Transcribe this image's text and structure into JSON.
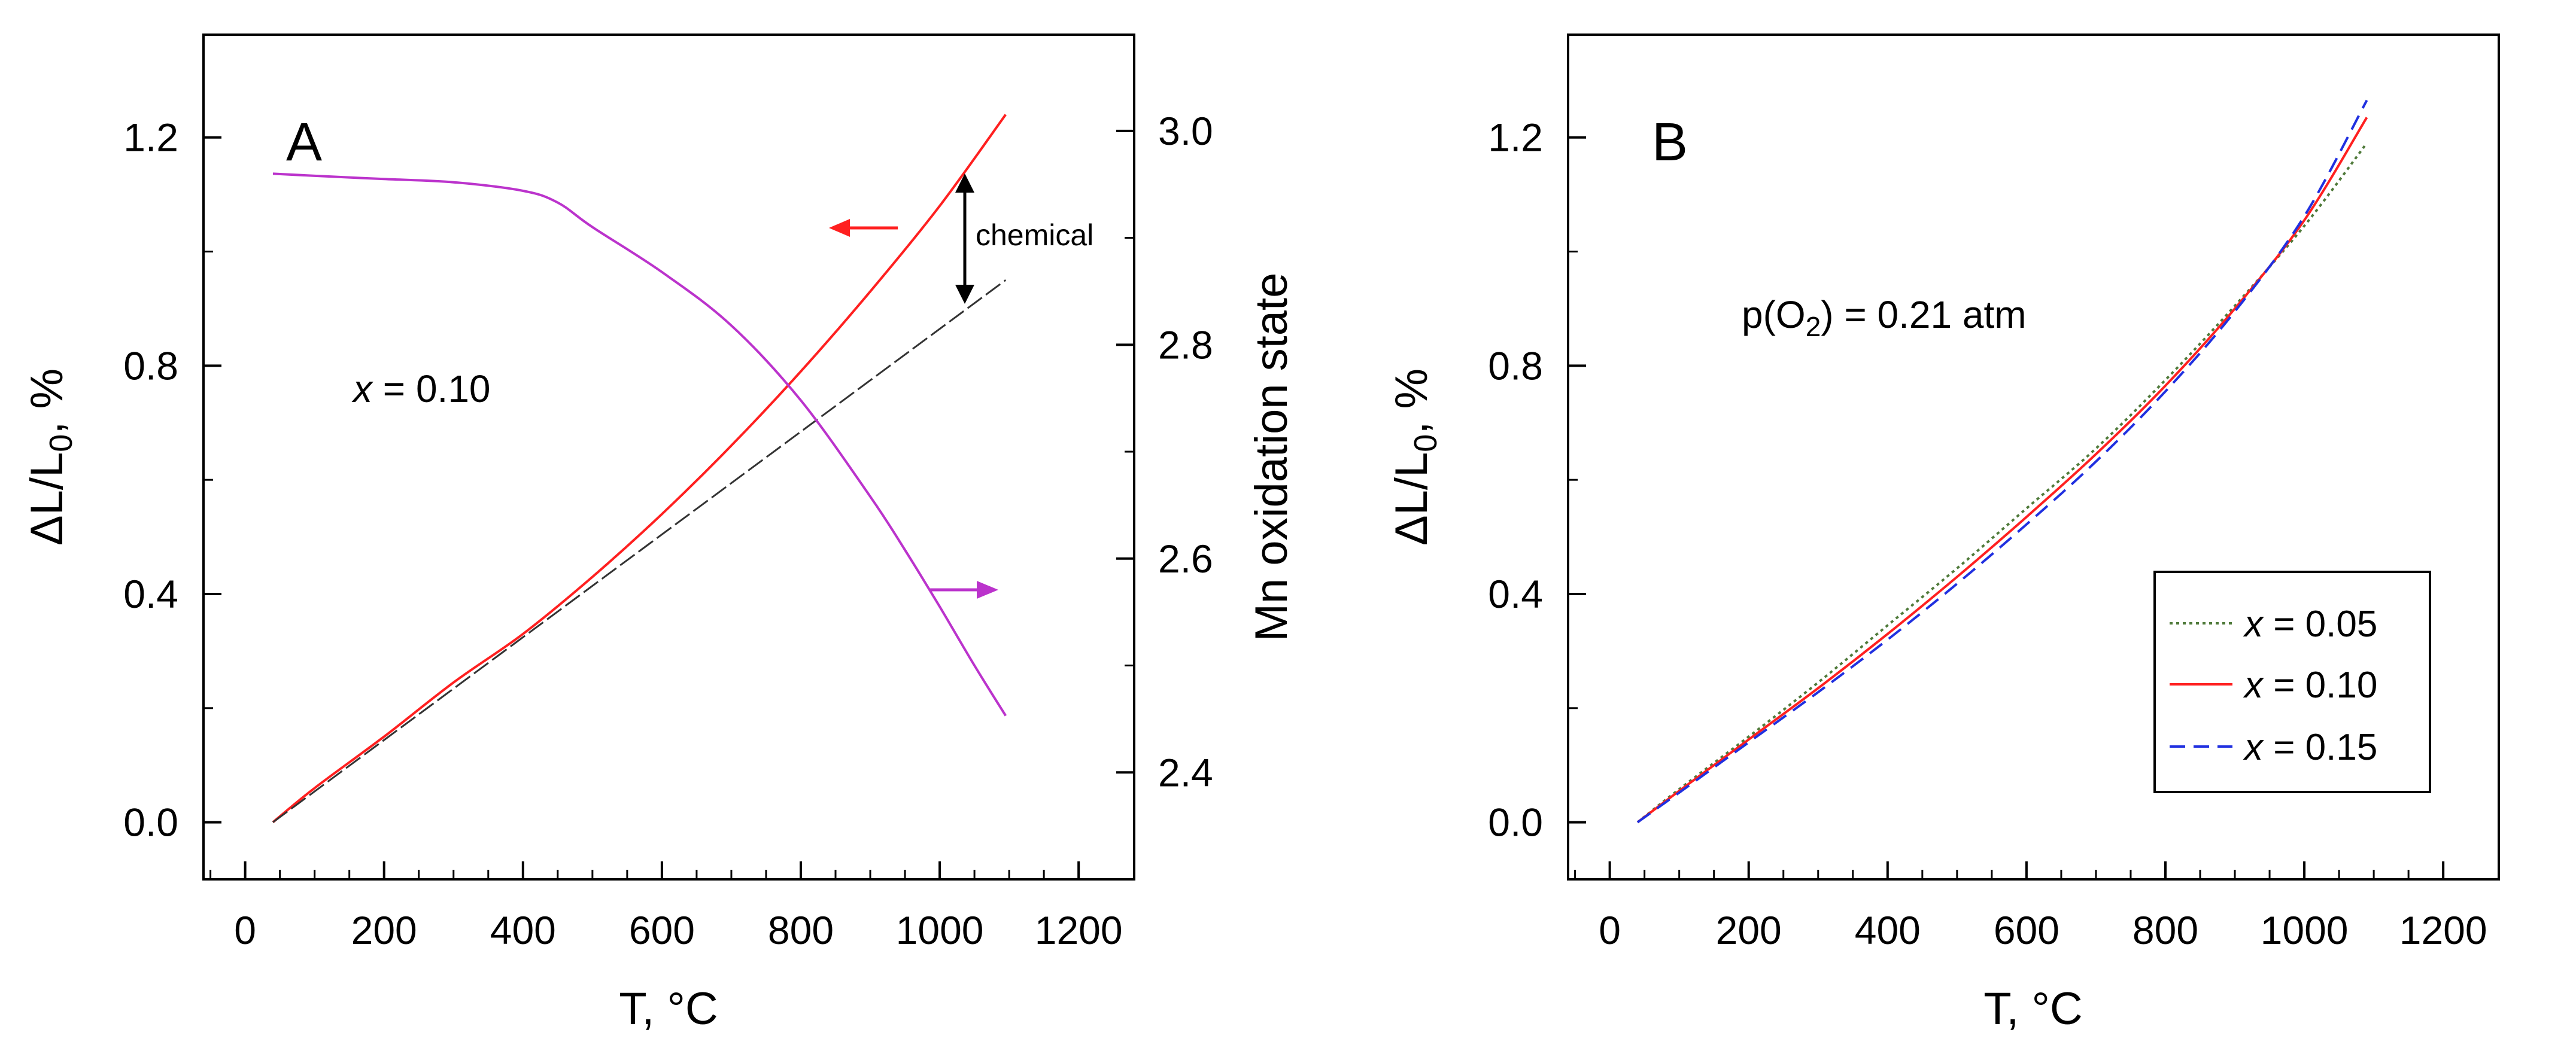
{
  "chart_data": [
    {
      "type": "line",
      "panel_label": "A",
      "xlabel": "T, °C",
      "ylabel": "ΔL/L₀, %",
      "ylabel_base": "ΔL/L",
      "ylabel_sub": "0",
      "ylabel_tail": ", %",
      "y2label": "Mn oxidation state",
      "xlim": [
        -60,
        1280
      ],
      "ylim": [
        -0.1,
        1.38
      ],
      "y2lim": [
        2.3,
        3.09
      ],
      "xticks": [
        0,
        200,
        400,
        600,
        800,
        1000,
        1200
      ],
      "yticks": [
        0.0,
        0.4,
        0.8,
        1.2
      ],
      "ytick_labels": [
        "0.0",
        "0.4",
        "0.8",
        "1.2"
      ],
      "y2ticks": [
        2.4,
        2.6,
        2.8,
        3.0
      ],
      "y2tick_labels": [
        "2.4",
        "2.6",
        "2.8",
        "3.0"
      ],
      "annotation_x_var": "x",
      "annotation_x_val": " = 0.10",
      "annotation_chemical": "chemical",
      "colors": {
        "expansion": "#ff2020",
        "oxidation": "#bb33cc",
        "linear_fit": "#333333",
        "arrow": "#000000"
      },
      "series": [
        {
          "name": "ΔL/L0 (x = 0.10)",
          "axis": "left",
          "style": "solid",
          "x": [
            40,
            100,
            200,
            300,
            400,
            500,
            600,
            700,
            800,
            900,
            1000,
            1095
          ],
          "values": [
            0.0,
            0.06,
            0.15,
            0.245,
            0.33,
            0.43,
            0.54,
            0.66,
            0.79,
            0.93,
            1.08,
            1.24
          ]
        },
        {
          "name": "Linear thermal expansion fit",
          "axis": "left",
          "style": "dashed",
          "x": [
            40,
            1095
          ],
          "values": [
            0.0,
            0.95
          ]
        },
        {
          "name": "Mn oxidation state",
          "axis": "right",
          "style": "solid",
          "x": [
            40,
            100,
            200,
            300,
            400,
            450,
            500,
            600,
            700,
            800,
            900,
            950,
            1000,
            1050,
            1095
          ],
          "values": [
            2.96,
            2.958,
            2.955,
            2.952,
            2.944,
            2.933,
            2.91,
            2.868,
            2.818,
            2.748,
            2.658,
            2.608,
            2.555,
            2.5,
            2.453
          ]
        }
      ]
    },
    {
      "type": "line",
      "panel_label": "B",
      "xlabel": "T, °C",
      "ylabel": "ΔL/L₀, %",
      "ylabel_base": "ΔL/L",
      "ylabel_sub": "0",
      "ylabel_tail": ", %",
      "xlim": [
        -60,
        1280
      ],
      "ylim": [
        -0.1,
        1.38
      ],
      "xticks": [
        0,
        200,
        400,
        600,
        800,
        1000,
        1200
      ],
      "yticks": [
        0.0,
        0.4,
        0.8,
        1.2
      ],
      "ytick_labels": [
        "0.0",
        "0.4",
        "0.8",
        "1.2"
      ],
      "annotation_po2_pre": "p(O",
      "annotation_po2_sub": "2",
      "annotation_po2_post": ") = 0.21 atm",
      "legend_position": "bottom-right",
      "series": [
        {
          "name": "x = 0.05",
          "legend_var": "x",
          "legend_val": " = 0.05",
          "color": "#4f7a3a",
          "style": "dotted",
          "x": [
            40,
            100,
            200,
            300,
            400,
            500,
            600,
            700,
            800,
            900,
            1000,
            1090
          ],
          "values": [
            0.0,
            0.058,
            0.15,
            0.245,
            0.345,
            0.445,
            0.55,
            0.655,
            0.775,
            0.905,
            1.045,
            1.19
          ]
        },
        {
          "name": "x = 0.10",
          "legend_var": "x",
          "legend_val": " = 0.10",
          "color": "#ff2020",
          "style": "solid",
          "x": [
            40,
            100,
            200,
            300,
            400,
            500,
            600,
            700,
            800,
            900,
            1000,
            1090
          ],
          "values": [
            0.0,
            0.055,
            0.145,
            0.235,
            0.33,
            0.43,
            0.535,
            0.645,
            0.765,
            0.9,
            1.055,
            1.235
          ]
        },
        {
          "name": "x = 0.15",
          "legend_var": "x",
          "legend_val": " = 0.15",
          "color": "#2030e0",
          "style": "dashed",
          "x": [
            40,
            100,
            200,
            300,
            400,
            500,
            600,
            700,
            800,
            900,
            1000,
            1090
          ],
          "values": [
            0.0,
            0.052,
            0.14,
            0.228,
            0.32,
            0.418,
            0.522,
            0.632,
            0.755,
            0.895,
            1.062,
            1.265
          ]
        }
      ]
    }
  ]
}
